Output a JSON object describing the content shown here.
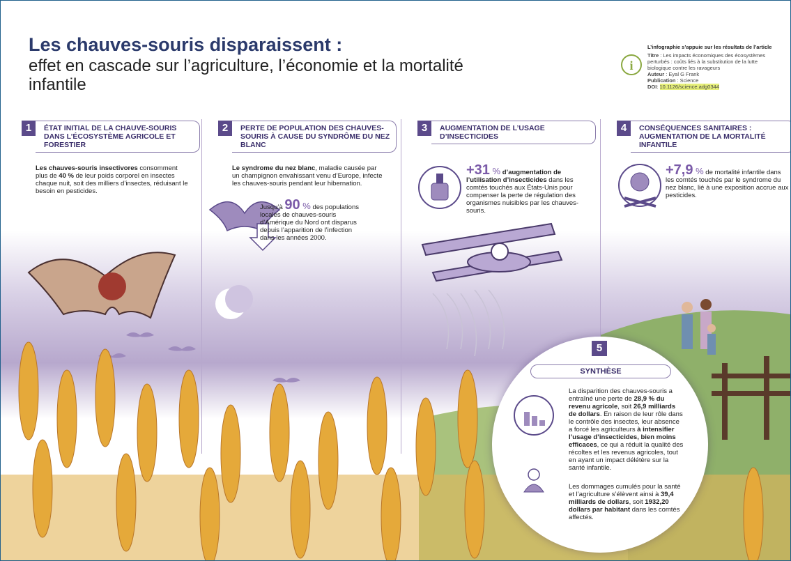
{
  "header": {
    "title": "Les chauves-souris disparaissent :",
    "subtitle": "effet en cascade sur l’agriculture, l’économie et la mortalité infantile"
  },
  "source": {
    "heading": "L’infographie s’appuie sur les résultats de l’article",
    "items": [
      [
        {
          "text": "Titre",
          "style": "bold"
        },
        {
          "text": " : Les impacts économiques des écosystèmes perturbés : coûts liés à la substitution de la lutte biologique contre les ravageurs"
        }
      ],
      [
        {
          "text": "Auteur",
          "style": "bold"
        },
        {
          "text": " : Eyal G Frank"
        }
      ],
      [
        {
          "text": "Publication",
          "style": "bold"
        },
        {
          "text": " : Science"
        }
      ],
      [
        {
          "text": "DOI",
          "style": "bold"
        },
        {
          "text": ": "
        },
        {
          "text": "10.1126/science.adg0344",
          "style": "highlight"
        }
      ]
    ]
  },
  "sections": [
    {
      "number": "1",
      "title": "ÉTAT INITIAL DE LA CHAUVE-SOURIS DANS L’ÉCOSYSTÈME AGRICOLE ET FORESTIER",
      "body": [
        {
          "text": "Les chauves-souris insectivores",
          "style": "bold"
        },
        {
          "text": " consomment plus de "
        },
        {
          "text": "40 %",
          "style": "bold"
        },
        {
          "text": " de leur poids corporel en insectes chaque nuit, soit des milliers d’insectes, réduisant le besoin en pesticides."
        }
      ],
      "stat": []
    },
    {
      "number": "2",
      "title": "PERTE DE POPULATION DES CHAUVES-SOURIS À CAUSE DU SYNDRÔME DU NEZ BLANC",
      "body": [
        {
          "text": "Le syndrome du nez blanc",
          "style": "bold"
        },
        {
          "text": ", maladie causée par un champignon envahissant venu d’Europe, infecte les chauves-souris pendant leur hibernation."
        }
      ],
      "stat": [
        {
          "text": "Jusqu’à "
        },
        {
          "text": "90",
          "style": "big"
        },
        {
          "text": " %",
          "style": "pct"
        },
        {
          "text": " des populations locales de chauves-souris d’Amérique du Nord ont disparus depuis l’apparition de l’infection dans les années 2000."
        }
      ]
    },
    {
      "number": "3",
      "title": "AUGMENTATION DE L’USAGE D’INSECTICIDES",
      "body": [],
      "stat": [
        {
          "text": "+31",
          "style": "big"
        },
        {
          "text": " %",
          "style": "pct"
        },
        {
          "text": " d’augmentation de l’utilisation d’insecticides",
          "style": "bold"
        },
        {
          "text": " dans les comtés touchés aux États-Unis pour compenser la perte de régulation des organismes nuisibles par les chauves-souris."
        }
      ]
    },
    {
      "number": "4",
      "title": "CONSÉQUENCES SANITAIRES : AUGMENTATION DE LA MORTALITÉ INFANTILE",
      "body": [],
      "stat": [
        {
          "text": "+7,9",
          "style": "big"
        },
        {
          "text": " %",
          "style": "pct"
        },
        {
          "text": " de mortalité infantile dans les comtés touchés par le syndrome du nez blanc, lié à une exposition accrue aux pesticides."
        }
      ]
    }
  ],
  "synthesis": {
    "number": "5",
    "title": "SYNTHÈSE",
    "paragraphs": [
      [
        {
          "text": "La disparition des chauves-souris a entraîné une perte de "
        },
        {
          "text": "28,9 % du revenu agricole",
          "style": "bold"
        },
        {
          "text": ", soit "
        },
        {
          "text": "26,9 milliards de dollars",
          "style": "bold"
        },
        {
          "text": ". En raison de leur rôle dans le contrôle des insectes, leur absence a forcé les agriculteurs "
        },
        {
          "text": "à intensifier l’usage d’insecticides, bien moins efficaces",
          "style": "bold"
        },
        {
          "text": ", ce qui a réduit la qualité des récoltes et les revenus agricoles, tout en ayant un impact délétère sur la santé infantile."
        }
      ],
      [
        {
          "text": "Les dommages cumulés pour la santé et l’agriculture s’élèvent ainsi à "
        },
        {
          "text": "39,4 milliards de dollars",
          "style": "bold"
        },
        {
          "text": ", soit "
        },
        {
          "text": "1932,20 dollars par habitant",
          "style": "bold"
        },
        {
          "text": " dans les comtés affectés."
        }
      ]
    ]
  }
}
